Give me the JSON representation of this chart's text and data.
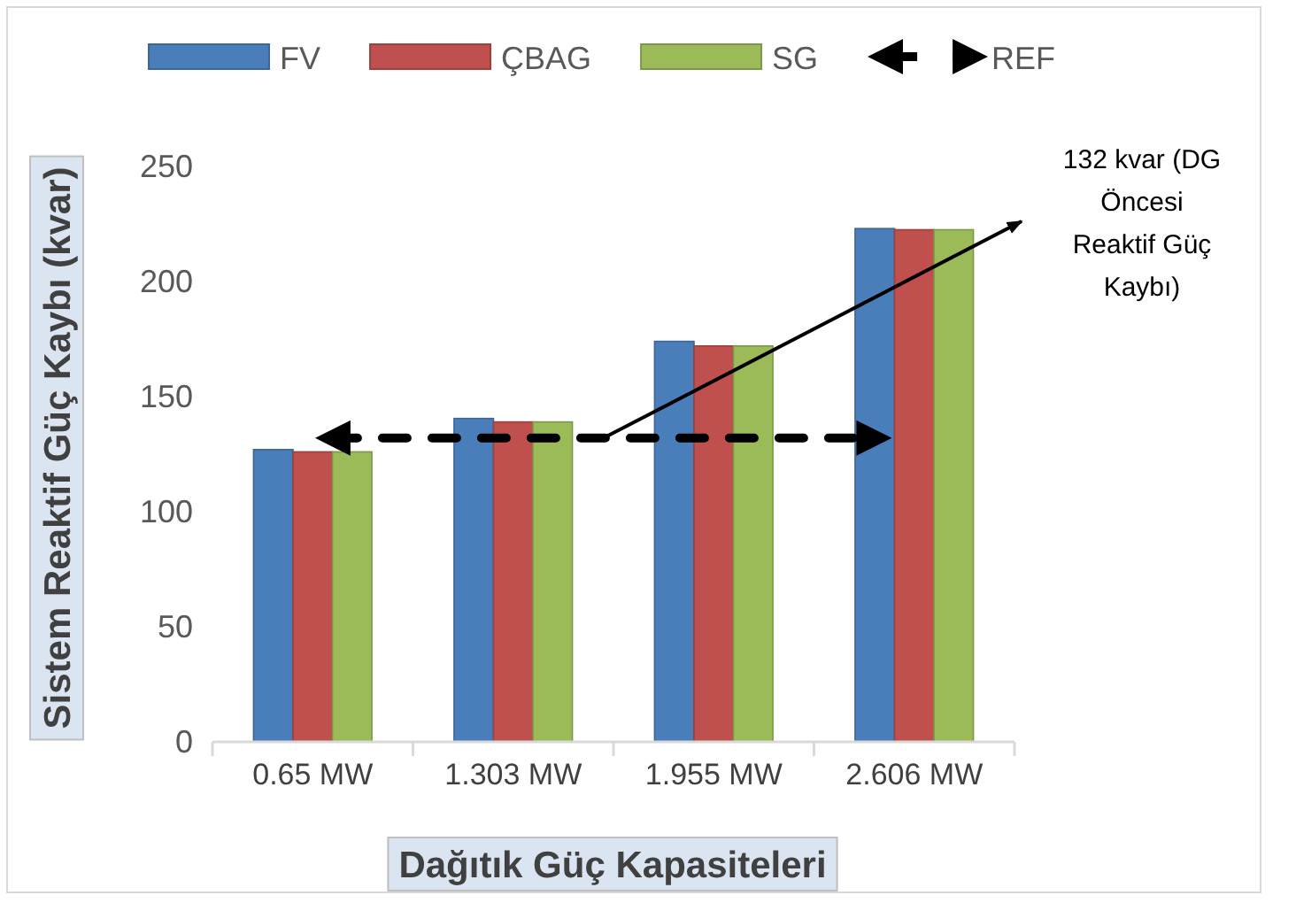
{
  "chart_data": {
    "type": "bar",
    "xlabel": "Dağıtık Güç Kapasiteleri",
    "ylabel": "Sistem Reaktif Güç Kaybı (kvar)",
    "categories": [
      "0.65 MW",
      "1.303 MW",
      "1.955 MW",
      "2.606 MW"
    ],
    "series": [
      {
        "name": "FV",
        "color": "#4a7ebb",
        "values": [
          127,
          140.5,
          174,
          223
        ]
      },
      {
        "name": "ÇBAG",
        "color": "#c0504d",
        "values": [
          126,
          139,
          172,
          222.5
        ]
      },
      {
        "name": "SG",
        "color": "#9bbb59",
        "values": [
          126,
          139,
          172,
          222.5
        ]
      }
    ],
    "ylim": [
      0,
      250
    ],
    "yticks": [
      0,
      50,
      100,
      150,
      200,
      250
    ],
    "grid": false,
    "legend": "top",
    "ref_lines": [
      {
        "axis": "y",
        "value": 132,
        "label": "REF",
        "color": "#000000",
        "line_style": "dashed"
      }
    ],
    "annotations": [
      "132 kvar (DG Öncesi Reaktif Güç Kaybı)"
    ]
  }
}
